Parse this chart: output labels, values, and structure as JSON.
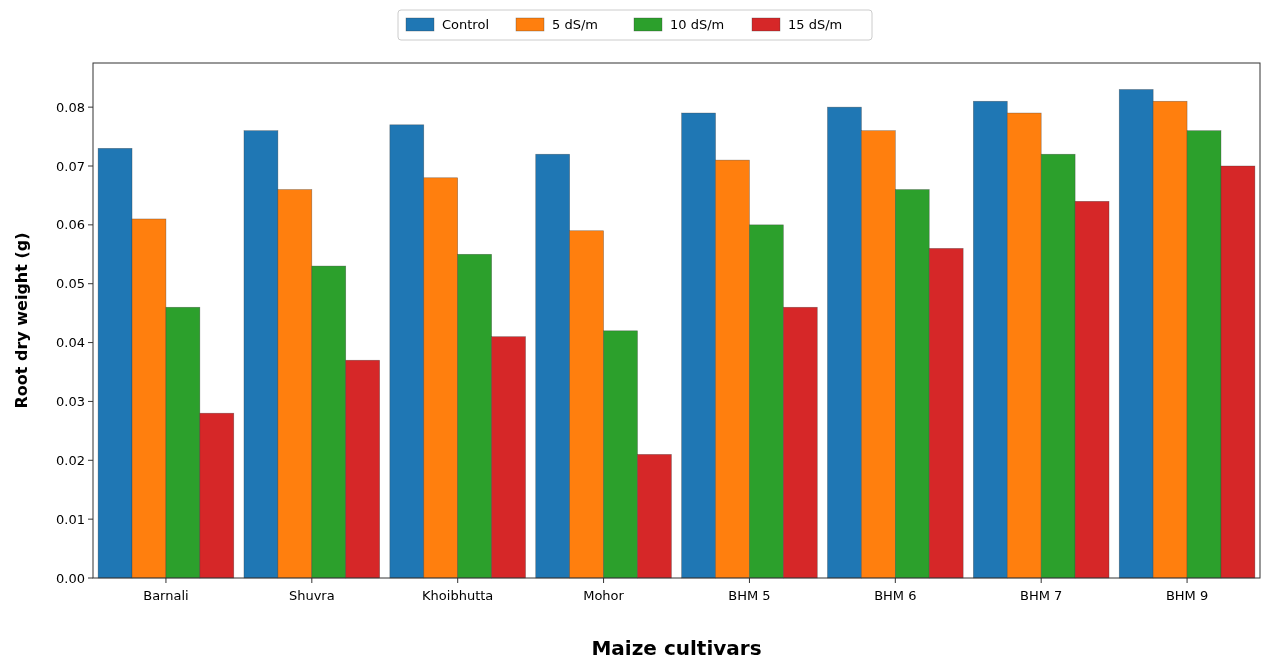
{
  "chart_data": {
    "type": "bar",
    "xlabel": "Maize cultivars",
    "ylabel": "Root dry weight (g)",
    "categories": [
      "Barnali",
      "Shuvra",
      "Khoibhutta",
      "Mohor",
      "BHM 5",
      "BHM 6",
      "BHM 7",
      "BHM 9"
    ],
    "series": [
      {
        "name": "Control",
        "color": "#1f77b4",
        "values": [
          0.073,
          0.076,
          0.077,
          0.072,
          0.079,
          0.08,
          0.081,
          0.083
        ]
      },
      {
        "name": "5 dS/m",
        "color": "#ff7f0e",
        "values": [
          0.061,
          0.066,
          0.068,
          0.059,
          0.071,
          0.076,
          0.079,
          0.081
        ]
      },
      {
        "name": "10 dS/m",
        "color": "#2ca02c",
        "values": [
          0.046,
          0.053,
          0.055,
          0.042,
          0.06,
          0.066,
          0.072,
          0.076
        ]
      },
      {
        "name": "15 dS/m",
        "color": "#d62728",
        "values": [
          0.028,
          0.037,
          0.041,
          0.021,
          0.046,
          0.056,
          0.064,
          0.07
        ]
      }
    ],
    "ylim": [
      0,
      0.0875
    ],
    "yticks": [
      {
        "value": 0,
        "label": "0.00"
      },
      {
        "value": 0.01,
        "label": "0.01"
      },
      {
        "value": 0.02,
        "label": "0.02"
      },
      {
        "value": 0.03,
        "label": "0.03"
      },
      {
        "value": 0.04,
        "label": "0.04"
      },
      {
        "value": 0.05,
        "label": "0.05"
      },
      {
        "value": 0.06,
        "label": "0.06"
      },
      {
        "value": 0.07,
        "label": "0.07"
      },
      {
        "value": 0.08,
        "label": "0.08"
      }
    ],
    "legend": "top",
    "grid": false
  }
}
